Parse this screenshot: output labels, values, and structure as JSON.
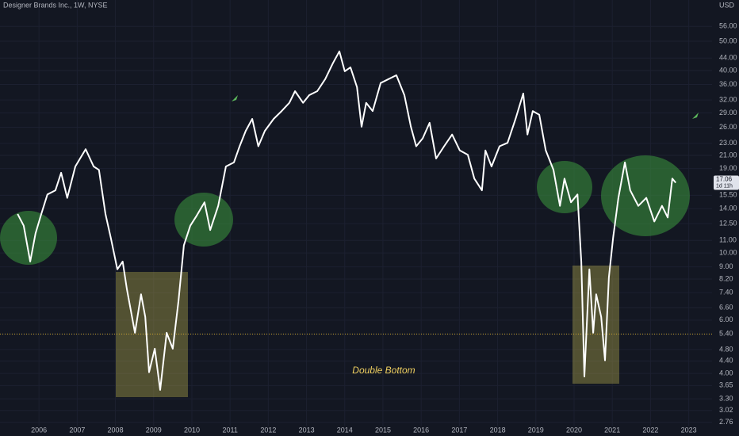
{
  "chart_data": {
    "type": "line",
    "title": "Designer Brands Inc., 1W, NYSE",
    "currency": "USD",
    "annotation": "Double Bottom",
    "countdown": "1d 11h",
    "log_scale": true,
    "grid": true,
    "color": "#ffffff",
    "hline": 5.4,
    "hline_color": "#c9a227",
    "xlim": [
      2004.98,
      2023.61
    ],
    "xticks": [
      2006,
      2007,
      2008,
      2009,
      2010,
      2011,
      2012,
      2013,
      2014,
      2015,
      2016,
      2017,
      2018,
      2019,
      2020,
      2021,
      2022,
      2023
    ],
    "ylim": [
      2.69,
      68.4
    ],
    "yticks": [
      {
        "value": 2.76,
        "label": "2.76"
      },
      {
        "value": 3.02,
        "label": "3.02"
      },
      {
        "value": 3.3,
        "label": "3.30"
      },
      {
        "value": 3.65,
        "label": "3.65"
      },
      {
        "value": 4,
        "label": "4.00"
      },
      {
        "value": 4.4,
        "label": "4.40"
      },
      {
        "value": 4.8,
        "label": "4.80"
      },
      {
        "value": 5.4,
        "label": "5.40"
      },
      {
        "value": 6,
        "label": "6.00"
      },
      {
        "value": 6.6,
        "label": "6.60"
      },
      {
        "value": 7.4,
        "label": "7.40"
      },
      {
        "value": 8.2,
        "label": "8.20"
      },
      {
        "value": 9,
        "label": "9.00"
      },
      {
        "value": 10,
        "label": "10.00"
      },
      {
        "value": 11,
        "label": "11.00"
      },
      {
        "value": 12.5,
        "label": "12.50"
      },
      {
        "value": 14,
        "label": "14.00"
      },
      {
        "value": 15.5,
        "label": "15.50"
      },
      {
        "value": 19,
        "label": "19.00"
      },
      {
        "value": 21,
        "label": "21.00"
      },
      {
        "value": 23,
        "label": "23.00"
      },
      {
        "value": 26,
        "label": "26.00"
      },
      {
        "value": 29,
        "label": "29.00"
      },
      {
        "value": 32,
        "label": "32.00"
      },
      {
        "value": 36,
        "label": "36.00"
      },
      {
        "value": 40,
        "label": "40.00"
      },
      {
        "value": 44,
        "label": "44.00"
      },
      {
        "value": 50,
        "label": "50.00"
      },
      {
        "value": 56,
        "label": "56.00"
      }
    ],
    "x": [
      2005.44,
      2005.6,
      2005.77,
      2005.91,
      2006.06,
      2006.22,
      2006.43,
      2006.58,
      2006.74,
      2006.95,
      2007.22,
      2007.43,
      2007.57,
      2007.74,
      2007.88,
      2008.05,
      2008.19,
      2008.3,
      2008.51,
      2008.67,
      2008.78,
      2008.88,
      2009.03,
      2009.17,
      2009.34,
      2009.5,
      2009.65,
      2009.79,
      2009.96,
      2010.13,
      2010.33,
      2010.48,
      2010.69,
      2010.89,
      2011.1,
      2011.25,
      2011.41,
      2011.58,
      2011.74,
      2011.91,
      2012.14,
      2012.35,
      2012.55,
      2012.7,
      2012.91,
      2013.07,
      2013.28,
      2013.49,
      2013.69,
      2013.86,
      2014.0,
      2014.15,
      2014.32,
      2014.44,
      2014.56,
      2014.73,
      2014.94,
      2015.15,
      2015.35,
      2015.56,
      2015.73,
      2015.87,
      2016.04,
      2016.22,
      2016.39,
      2016.6,
      2016.81,
      2017.01,
      2017.22,
      2017.39,
      2017.59,
      2017.68,
      2017.84,
      2018.05,
      2018.26,
      2018.47,
      2018.67,
      2018.78,
      2018.92,
      2019.09,
      2019.26,
      2019.46,
      2019.63,
      2019.75,
      2019.92,
      2020.09,
      2020.19,
      2020.27,
      2020.4,
      2020.5,
      2020.58,
      2020.71,
      2020.81,
      2020.91,
      2021.02,
      2021.16,
      2021.33,
      2021.47,
      2021.68,
      2021.89,
      2022.1,
      2022.3,
      2022.45,
      2022.57,
      2022.66
    ],
    "values": [
      13.45,
      12.3,
      9.37,
      11.6,
      13.45,
      15.6,
      16.1,
      18.4,
      15.2,
      19.3,
      22.0,
      19.3,
      18.8,
      13.45,
      11.2,
      8.83,
      9.37,
      7.6,
      5.45,
      7.3,
      6.15,
      4.04,
      4.83,
      3.53,
      5.45,
      4.83,
      6.94,
      10.6,
      12.3,
      13.3,
      14.7,
      11.9,
      14.3,
      19.3,
      19.9,
      22.5,
      25.3,
      27.7,
      22.5,
      25.3,
      27.7,
      29.4,
      31.3,
      34.2,
      31.3,
      33.2,
      34.2,
      37.5,
      42.3,
      46.3,
      39.8,
      41.0,
      35.3,
      26.1,
      31.3,
      29.4,
      36.4,
      37.5,
      38.6,
      33.2,
      26.1,
      22.5,
      23.9,
      26.9,
      20.5,
      22.5,
      24.6,
      21.8,
      21.1,
      17.6,
      16.1,
      21.8,
      19.3,
      22.5,
      23.1,
      27.7,
      33.6,
      24.6,
      29.4,
      28.6,
      21.8,
      18.8,
      14.3,
      17.6,
      14.7,
      15.6,
      9.37,
      3.91,
      8.83,
      5.45,
      7.3,
      6.15,
      4.42,
      8.31,
      11.2,
      15.2,
      19.9,
      16.1,
      14.3,
      15.2,
      12.7,
      14.3,
      13.1,
      17.6,
      17.06
    ]
  }
}
